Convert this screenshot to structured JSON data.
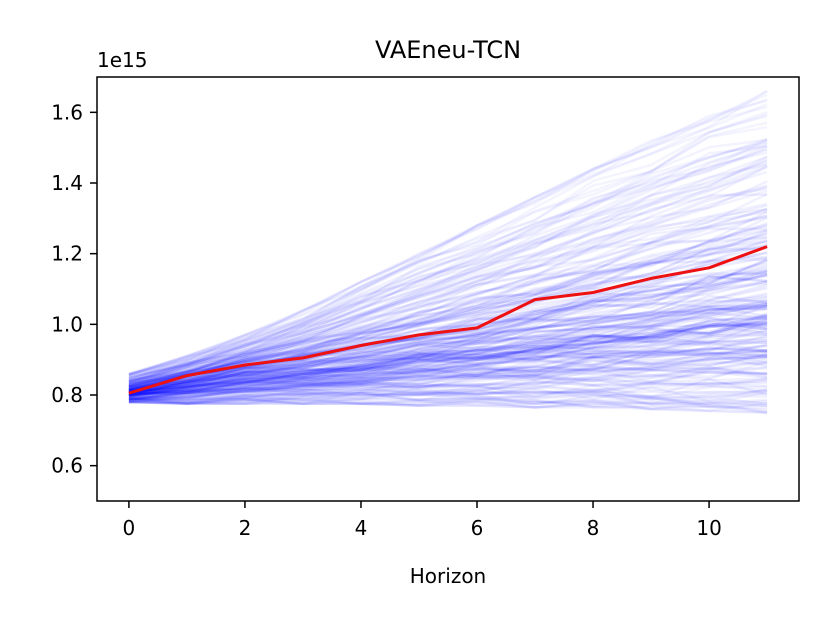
{
  "chart_data": {
    "type": "line",
    "title": "VAEneu-TCN",
    "xlabel": "Horizon",
    "ylabel": "",
    "y_offset_label": "1e15",
    "xlim": [
      -0.55,
      11.55
    ],
    "ylim": [
      0.5,
      1.7
    ],
    "x_ticks": [
      0,
      2,
      4,
      6,
      8,
      10
    ],
    "x_tick_labels": [
      "0",
      "2",
      "4",
      "6",
      "8",
      "10"
    ],
    "y_ticks": [
      0.6,
      0.8,
      1.0,
      1.2,
      1.4,
      1.6
    ],
    "y_tick_labels": [
      "0.6",
      "0.8",
      "1.0",
      "1.2",
      "1.4",
      "1.6"
    ],
    "grid": false,
    "x": [
      0,
      1,
      2,
      3,
      4,
      5,
      6,
      7,
      8,
      9,
      10,
      11
    ],
    "series": [
      {
        "values": [
          0.805,
          0.855,
          0.885,
          0.905,
          0.94,
          0.97,
          0.99,
          1.07,
          1.09,
          1.13,
          1.16,
          1.22
        ],
        "color": "#ee1111"
      }
    ],
    "sample_band": {
      "color": "#0000ff",
      "lower": [
        0.78,
        0.775,
        0.775,
        0.775,
        0.775,
        0.77,
        0.77,
        0.765,
        0.765,
        0.76,
        0.755,
        0.75
      ],
      "upper": [
        0.86,
        0.91,
        0.97,
        1.04,
        1.12,
        1.2,
        1.28,
        1.36,
        1.44,
        1.52,
        1.59,
        1.66
      ],
      "center": [
        0.81,
        0.84,
        0.865,
        0.885,
        0.905,
        0.93,
        0.95,
        0.975,
        1.0,
        1.02,
        1.05,
        1.07
      ]
    }
  }
}
